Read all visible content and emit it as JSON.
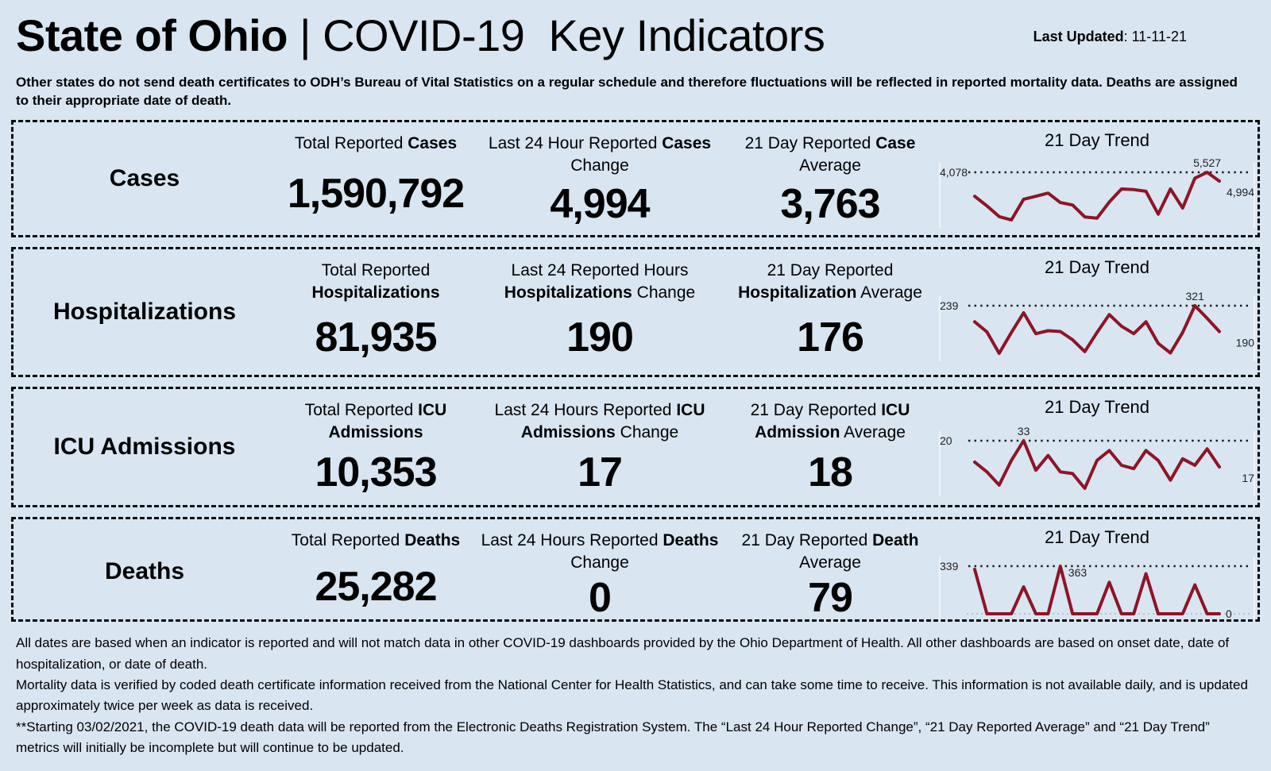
{
  "colors": {
    "background": "#d9e5f1",
    "line": "#8e1427",
    "ref_dots": "#1a1a1a",
    "text": "#000000"
  },
  "header": {
    "title_segments": [
      {
        "t": "State of Ohio ",
        "b": true
      },
      {
        "t": "| COVID-19  Key Indicators",
        "b": false
      }
    ],
    "last_updated_segments": [
      {
        "t": "Last Updated",
        "b": true
      },
      {
        "t": ": 11-11-21",
        "b": false
      }
    ]
  },
  "disclaimer": "Other states do not send death certificates to ODH’s Bureau of Vital Statistics on a regular schedule and therefore fluctuations will be reflected in reported mortality data. Deaths are assigned to their appropriate date of death.",
  "rows": [
    {
      "label": "Cases",
      "stats": [
        {
          "header": [
            {
              "t": "Total Reported ",
              "b": false
            },
            {
              "t": "Cases",
              "b": true
            }
          ],
          "value": "1,590,792"
        },
        {
          "header": [
            {
              "t": "Last 24 Hour Reported ",
              "b": false
            },
            {
              "t": "Cases",
              "b": true
            },
            {
              "t": " Change",
              "b": false
            }
          ],
          "value": "4,994"
        },
        {
          "header": [
            {
              "t": "21 Day Reported ",
              "b": false
            },
            {
              "t": "Case",
              "b": true
            },
            {
              "t": " Average",
              "b": false
            }
          ],
          "value": "3,763"
        }
      ]
    },
    {
      "label": "Hospitalizations",
      "stats": [
        {
          "header": [
            {
              "t": "Total Reported ",
              "b": false
            },
            {
              "t": "Hospitalizations",
              "b": true
            }
          ],
          "value": "81,935"
        },
        {
          "header": [
            {
              "t": "Last 24 Reported Hours ",
              "b": false
            },
            {
              "t": "Hospitalizations",
              "b": true
            },
            {
              "t": " Change",
              "b": false
            }
          ],
          "value": "190"
        },
        {
          "header": [
            {
              "t": "21 Day Reported ",
              "b": false
            },
            {
              "t": "Hospitalization",
              "b": true
            },
            {
              "t": " Average",
              "b": false
            }
          ],
          "value": "176"
        }
      ]
    },
    {
      "label": "ICU Admissions",
      "stats": [
        {
          "header": [
            {
              "t": "Total Reported ",
              "b": false
            },
            {
              "t": "ICU Admissions",
              "b": true
            }
          ],
          "value": "10,353"
        },
        {
          "header": [
            {
              "t": "Last 24 Hours Reported ",
              "b": false
            },
            {
              "t": "ICU Admissions",
              "b": true
            },
            {
              "t": " Change",
              "b": false
            }
          ],
          "value": "17"
        },
        {
          "header": [
            {
              "t": "21 Day Reported ",
              "b": false
            },
            {
              "t": "ICU Admission",
              "b": true
            },
            {
              "t": " Average",
              "b": false
            }
          ],
          "value": "18"
        }
      ]
    },
    {
      "label": "Deaths",
      "stats": [
        {
          "header": [
            {
              "t": "Total Reported ",
              "b": false
            },
            {
              "t": "Deaths",
              "b": true
            }
          ],
          "value": "25,282"
        },
        {
          "header": [
            {
              "t": "Last 24 Hours Reported ",
              "b": false
            },
            {
              "t": "Deaths",
              "b": true
            },
            {
              "t": " Change",
              "b": false
            }
          ],
          "value": "0"
        },
        {
          "header": [
            {
              "t": "21 Day Reported ",
              "b": false
            },
            {
              "t": "Death",
              "b": true
            },
            {
              "t": " Average",
              "b": false
            }
          ],
          "value": "79"
        }
      ]
    }
  ],
  "chart_data": [
    {
      "type": "line",
      "title": "21 Day Trend",
      "series_name": "Cases reported per day",
      "x": [
        1,
        2,
        3,
        4,
        5,
        6,
        7,
        8,
        9,
        10,
        11,
        12,
        13,
        14,
        15,
        16,
        17,
        18,
        19,
        20,
        21
      ],
      "values": [
        4078,
        3500,
        2850,
        2650,
        3900,
        4080,
        4270,
        3700,
        3550,
        2830,
        2760,
        3730,
        4520,
        4480,
        4380,
        3000,
        4520,
        3370,
        5170,
        5527,
        4994
      ],
      "start_label": "4,078",
      "peak_label": "5,527",
      "end_label": "4,994",
      "peak_index": 19,
      "ref_line": "max",
      "grid": false,
      "legend": "none",
      "peak_label_pos": "above",
      "end_label_pos": "below",
      "baseline_dotted": false
    },
    {
      "type": "line",
      "title": "21 Day Trend",
      "series_name": "Hospitalizations reported per day",
      "x": [
        1,
        2,
        3,
        4,
        5,
        6,
        7,
        8,
        9,
        10,
        11,
        12,
        13,
        14,
        15,
        16,
        17,
        18,
        19,
        20,
        21
      ],
      "values": [
        239,
        188,
        79,
        185,
        285,
        179,
        194,
        190,
        148,
        88,
        185,
        276,
        217,
        179,
        239,
        130,
        81,
        185,
        321,
        257,
        190
      ],
      "start_label": "239",
      "peak_label": "321",
      "end_label": "190",
      "peak_index": 18,
      "ref_line": "max",
      "grid": false,
      "legend": "none",
      "peak_label_pos": "above",
      "end_label_pos": "below",
      "baseline_dotted": false
    },
    {
      "type": "line",
      "title": "21 Day Trend",
      "series_name": "ICU admissions reported per day",
      "x": [
        1,
        2,
        3,
        4,
        5,
        6,
        7,
        8,
        9,
        10,
        11,
        12,
        13,
        14,
        15,
        16,
        17,
        18,
        19,
        20,
        21
      ],
      "values": [
        20,
        14,
        6,
        21,
        33,
        15,
        24,
        14,
        13,
        4,
        21,
        27,
        18,
        16,
        27,
        21,
        9,
        22,
        18,
        28,
        17
      ],
      "start_label": "20",
      "peak_label": "33",
      "end_label": "17",
      "peak_index": 4,
      "ref_line": "max",
      "grid": false,
      "legend": "none",
      "peak_label_pos": "above",
      "end_label_pos": "below",
      "baseline_dotted": false
    },
    {
      "type": "line",
      "title": "21 Day Trend",
      "series_name": "Deaths reported per day",
      "x": [
        1,
        2,
        3,
        4,
        5,
        6,
        7,
        8,
        9,
        10,
        11,
        12,
        13,
        14,
        15,
        16,
        17,
        18,
        19,
        20,
        21
      ],
      "values": [
        339,
        0,
        0,
        0,
        205,
        0,
        0,
        363,
        0,
        0,
        0,
        240,
        0,
        0,
        305,
        0,
        0,
        0,
        220,
        0,
        0
      ],
      "start_label": "339",
      "peak_label": "363",
      "end_label": "0",
      "peak_index": 7,
      "ref_line": "max",
      "grid": false,
      "legend": "none",
      "peak_label_pos": "right",
      "end_label_pos": "right",
      "baseline_dotted": true
    }
  ],
  "footnotes": [
    "All dates are based when an indicator is reported and will not match data in other COVID-19 dashboards provided by the Ohio Department of Health. All other dashboards are based on onset date, date of hospitalization, or date of death.",
    "Mortality data is verified by coded death certificate information received from the National Center for Health Statistics, and can take some time to receive. This information is not available daily, and is updated approximately twice per week as data is received.",
    "**Starting 03/02/2021, the COVID-19 death data will be reported from the Electronic Deaths Registration System. The “Last 24 Hour Reported Change”, “21 Day Reported Average” and “21 Day Trend” metrics will initially be incomplete but will continue to be updated."
  ]
}
